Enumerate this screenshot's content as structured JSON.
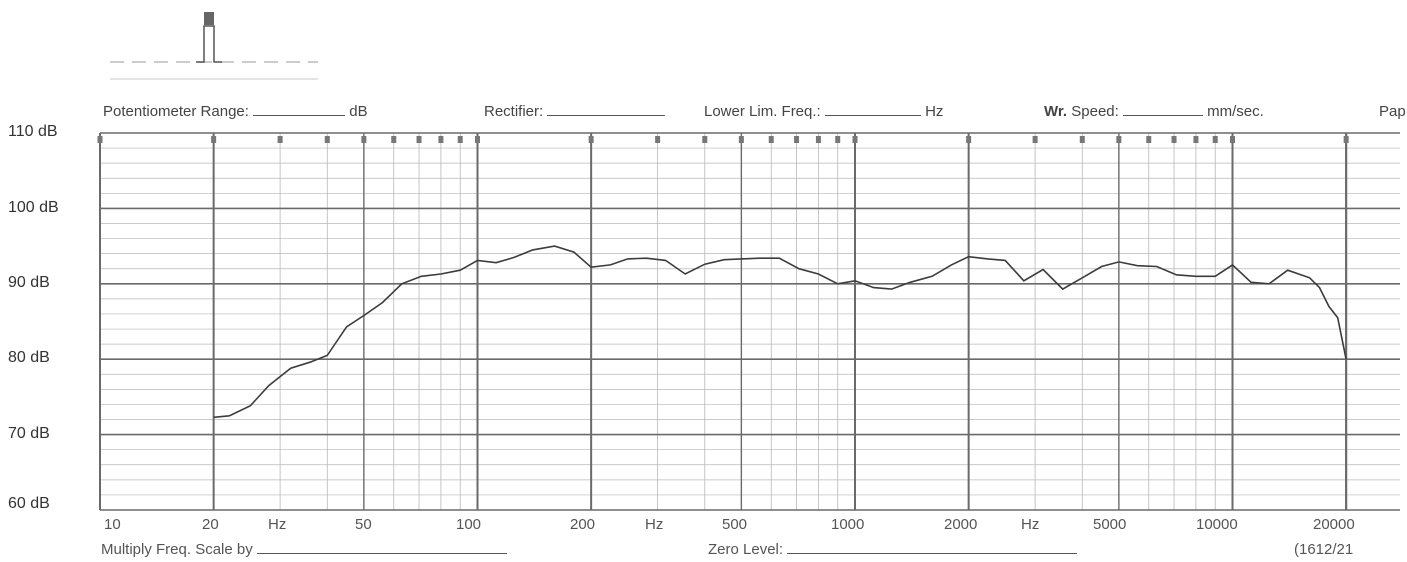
{
  "header": {
    "potentiometer_label": "Potentiometer Range:",
    "db_unit": "dB",
    "rectifier_label": "Rectifier:",
    "lower_lim_label": "Lower Lim. Freq.:",
    "hz_unit": "Hz",
    "wr_label": "Wr.",
    "speed_label": "Speed:",
    "speed_unit": "mm/sec.",
    "paper_label": "Pap"
  },
  "footer": {
    "multiply_label": "Multiply Freq. Scale by",
    "zero_level_label": "Zero Level:",
    "form_number": "(1612/21"
  },
  "colors": {
    "grid": "#b8b8b8",
    "grid_major": "#6a6a6a",
    "curve": "#3c3c3c",
    "text": "#444444"
  },
  "chart_data": {
    "type": "line",
    "x_scale": "log",
    "y_unit": "dB",
    "xlim": [
      10,
      25000
    ],
    "ylim": [
      60,
      110
    ],
    "y_ticks": [
      {
        "value": 110,
        "label": "110 dB"
      },
      {
        "value": 100,
        "label": "100 dB"
      },
      {
        "value": 90,
        "label": "90 dB"
      },
      {
        "value": 80,
        "label": "80 dB"
      },
      {
        "value": 70,
        "label": "70 dB"
      },
      {
        "value": 60,
        "label": "60 dB"
      }
    ],
    "x_ticks": [
      {
        "value": 10,
        "label": "10"
      },
      {
        "value": 20,
        "label": "20"
      },
      {
        "value": 30,
        "label": "Hz"
      },
      {
        "value": 50,
        "label": "50"
      },
      {
        "value": 100,
        "label": "100"
      },
      {
        "value": 200,
        "label": "200"
      },
      {
        "value": 300,
        "label": "Hz"
      },
      {
        "value": 500,
        "label": "500"
      },
      {
        "value": 1000,
        "label": "1000"
      },
      {
        "value": 2000,
        "label": "2000"
      },
      {
        "value": 3000,
        "label": "Hz"
      },
      {
        "value": 5000,
        "label": "5000"
      },
      {
        "value": 10000,
        "label": "10000"
      },
      {
        "value": 20000,
        "label": "20000"
      }
    ],
    "x": [
      20,
      22,
      25,
      28,
      32,
      36,
      40,
      45,
      50,
      56,
      63,
      71,
      80,
      90,
      100,
      112,
      125,
      140,
      160,
      180,
      200,
      225,
      250,
      280,
      315,
      355,
      400,
      450,
      500,
      560,
      630,
      710,
      800,
      900,
      1000,
      1120,
      1250,
      1400,
      1600,
      1800,
      2000,
      2250,
      2500,
      2800,
      3150,
      3550,
      4000,
      4500,
      5000,
      5600,
      6300,
      7100,
      8000,
      9000,
      10000,
      11200,
      12500,
      14000,
      16000,
      17000,
      18000,
      19000,
      20000
    ],
    "y": [
      72.3,
      72.5,
      73.8,
      76.5,
      78.8,
      79.6,
      80.5,
      84.3,
      85.8,
      87.5,
      90.0,
      91.0,
      91.3,
      91.8,
      93.1,
      92.8,
      93.5,
      94.5,
      95.0,
      94.2,
      92.2,
      92.5,
      93.3,
      93.4,
      93.1,
      91.3,
      92.6,
      93.2,
      93.3,
      93.4,
      93.4,
      92.0,
      91.3,
      90.0,
      90.4,
      89.5,
      89.3,
      90.2,
      91.0,
      92.5,
      93.6,
      93.3,
      93.1,
      90.4,
      91.9,
      89.3,
      90.8,
      92.3,
      92.9,
      92.4,
      92.3,
      91.2,
      91.0,
      91.0,
      92.5,
      90.2,
      90.0,
      91.8,
      90.8,
      89.5,
      87.0,
      85.5,
      80.0
    ]
  }
}
